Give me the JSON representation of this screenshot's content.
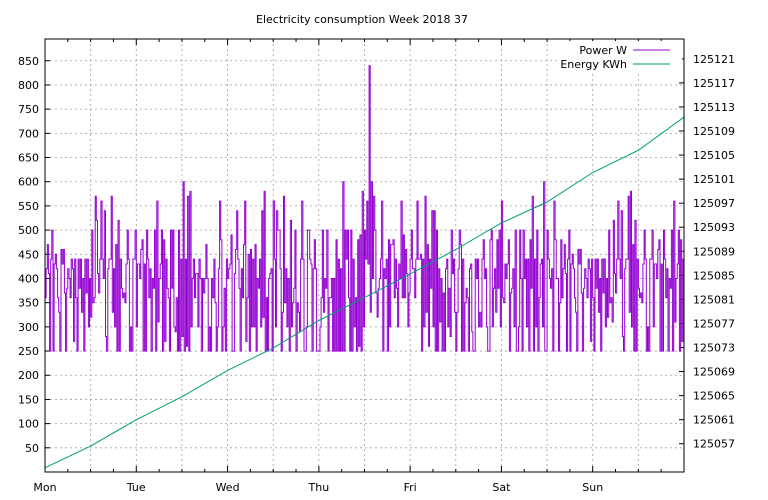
{
  "chart_data": {
    "type": "line",
    "title": "Electricity consumption Week 2018 37",
    "x_categories": [
      "Mon",
      "Tue",
      "Wed",
      "Thu",
      "Fri",
      "Sat",
      "Sun"
    ],
    "xlim_days": [
      0,
      7
    ],
    "y_left": {
      "ticks": [
        50,
        100,
        150,
        200,
        250,
        300,
        350,
        400,
        450,
        500,
        550,
        600,
        650,
        700,
        750,
        800,
        850
      ],
      "ylim": [
        0,
        895
      ]
    },
    "y_right": {
      "ticks": [
        125057,
        125061,
        125065,
        125069,
        125073,
        125077,
        125081,
        125085,
        125089,
        125093,
        125097,
        125101,
        125105,
        125109,
        125113,
        125117,
        125121
      ],
      "ylim": [
        125052.3,
        125124.3
      ]
    },
    "grid": true,
    "legend_position": "top-right",
    "series": [
      {
        "name": "Power W",
        "axis": "left",
        "color": "#9400d3",
        "style": "steps",
        "base_pattern": [
          300,
          420,
          250,
          360,
          440,
          250,
          310,
          420,
          250,
          350,
          440,
          360,
          250,
          400,
          470,
          500,
          380,
          560,
          430,
          500,
          410,
          480,
          250,
          360,
          270,
          410,
          300,
          370,
          250,
          500,
          250,
          440,
          300,
          360,
          250,
          440,
          300,
          350,
          450,
          600,
          420,
          560,
          380,
          500,
          430,
          250,
          400,
          330,
          440,
          250,
          360,
          290,
          440,
          250,
          400,
          300,
          430,
          250,
          440,
          300,
          500,
          380,
          540,
          400,
          500,
          250,
          440,
          370,
          500,
          280,
          420,
          250,
          440,
          330,
          400,
          250,
          500,
          360,
          440,
          250,
          470,
          380,
          560,
          420,
          490,
          300,
          440,
          250,
          400,
          360,
          440,
          250,
          360,
          300,
          440,
          250,
          400,
          330,
          460,
          250,
          500,
          380,
          560,
          430,
          570,
          410,
          480,
          300,
          440,
          250,
          400,
          330,
          460,
          260,
          440,
          300,
          400,
          250,
          420,
          370,
          570,
          430,
          540,
          400,
          480,
          300,
          440,
          250,
          400,
          320,
          440,
          250,
          470,
          380,
          580,
          420,
          500,
          350,
          440,
          250,
          420,
          300,
          480,
          250,
          480,
          380,
          520,
          420,
          500,
          250,
          360
        ],
        "spikes": [
          {
            "day": 3.56,
            "value": 840
          },
          {
            "day": 1.52,
            "value": 600
          },
          {
            "day": 0.55,
            "value": 570
          },
          {
            "day": 6.42,
            "value": 580
          }
        ]
      },
      {
        "name": "Energy KWh",
        "axis": "right",
        "color": "#009e73",
        "style": "line",
        "x": [
          0,
          0.5,
          1.0,
          1.5,
          2.0,
          2.5,
          3.0,
          3.5,
          4.0,
          4.5,
          5.0,
          5.5,
          6.0,
          6.5,
          7.0
        ],
        "values": [
          125053.0,
          125056.6,
          125061.0,
          125064.8,
          125069.2,
          125072.9,
          125077.5,
          125081.3,
          125085.2,
          125089.3,
          125093.7,
          125097.2,
          125102.1,
          125105.8,
          125111.3
        ]
      }
    ]
  }
}
